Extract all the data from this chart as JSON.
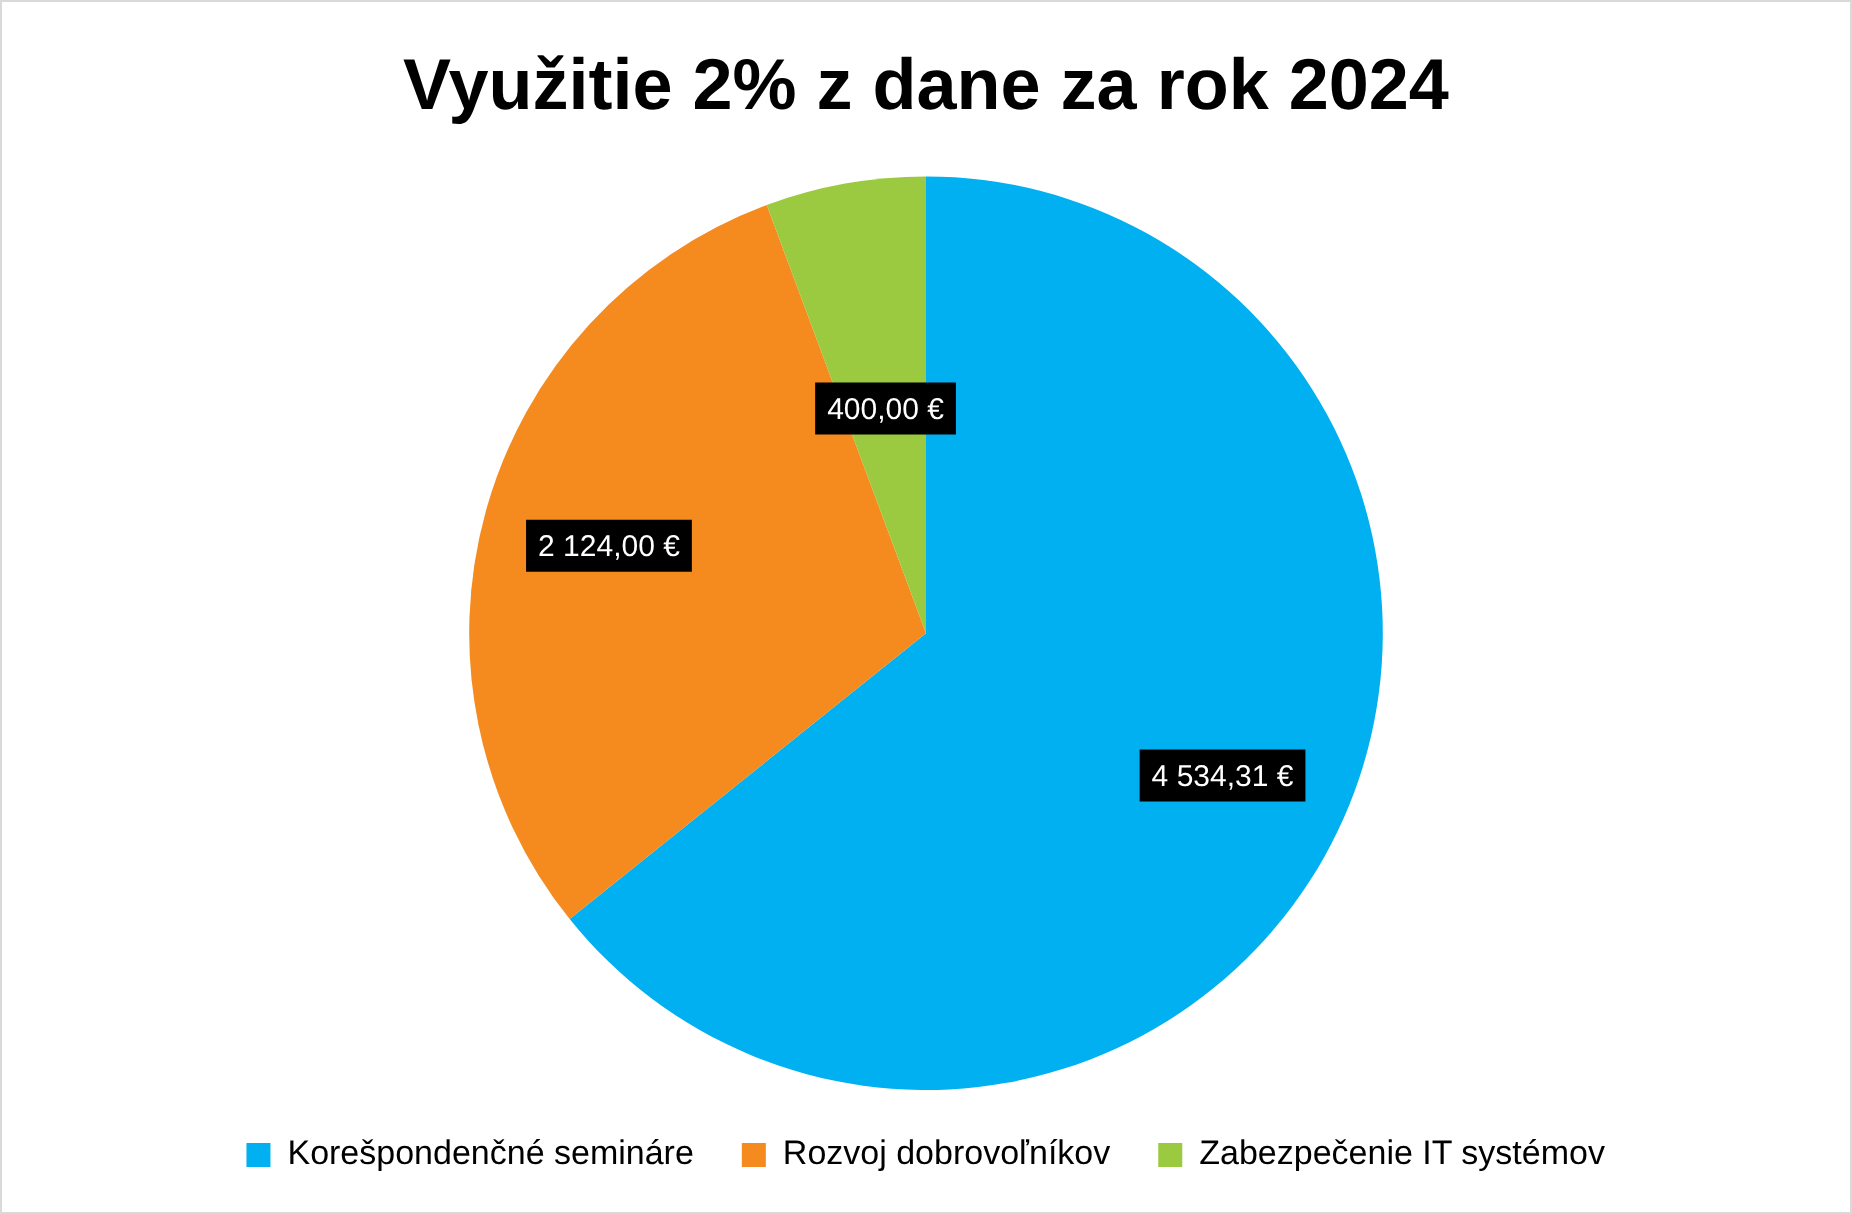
{
  "chart_data": {
    "type": "pie",
    "title": "Využitie 2% z dane za rok 2024",
    "categories": [
      "Korešpondenčné semináre",
      "Rozvoj dobrovoľníkov",
      "Zabezpečenie IT systémov"
    ],
    "values": [
      4534.31,
      2124.0,
      400.0
    ],
    "colors": [
      "#00b0f0",
      "#f58a1f",
      "#9bc93f"
    ],
    "value_labels": [
      "4 534,31 €",
      "2 124,00 €",
      "400,00 €"
    ],
    "legend": "bottom"
  }
}
